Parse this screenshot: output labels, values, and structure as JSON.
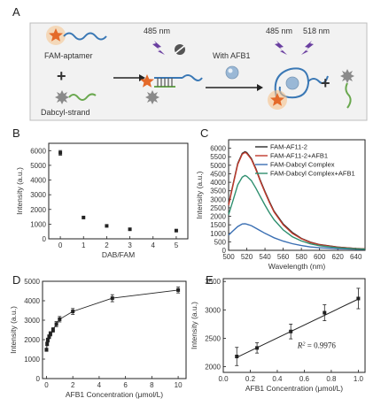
{
  "panel_letters": {
    "a": "A",
    "b": "B",
    "c": "C",
    "d": "D",
    "e": "E"
  },
  "scheme": {
    "fam_aptamer": "FAM-aptamer",
    "dabcyl_strand": "Dabcyl-strand",
    "excitation_1": "485 nm",
    "with_afb1": "With AFB1",
    "excitation_2": "485 nm",
    "emission": "518 nm",
    "colors": {
      "aptamer": "#3a78b5",
      "fam": "#e46a2a",
      "dabcyl": "#6aa84f",
      "quencher": "#8a8a8a",
      "light": "#6a3fa0",
      "afb1": "#9ab8d6",
      "glow": "#f6c28a"
    }
  },
  "chart_data": [
    {
      "id": "B",
      "type": "scatter",
      "xlabel": "DAB/FAM",
      "ylabel": "Intensity (a.u.)",
      "xlim": [
        -0.5,
        5.5
      ],
      "ylim": [
        0,
        6500
      ],
      "xticks": [
        0,
        1,
        2,
        3,
        4,
        5
      ],
      "yticks": [
        0,
        1000,
        2000,
        3000,
        4000,
        5000,
        6000
      ],
      "x": [
        0,
        1,
        2,
        3,
        5
      ],
      "y": [
        5850,
        1450,
        880,
        650,
        560
      ],
      "err": [
        160,
        0,
        0,
        0,
        0
      ],
      "grid": false
    },
    {
      "id": "C",
      "type": "line",
      "xlabel": "Wavelength (nm)",
      "ylabel": "Intensity (a.u.)",
      "xlim": [
        500,
        650
      ],
      "ylim": [
        0,
        6500
      ],
      "xticks": [
        500,
        520,
        540,
        560,
        580,
        600,
        620,
        640
      ],
      "yticks": [
        0,
        500,
        1000,
        1500,
        2000,
        2500,
        3000,
        3500,
        4000,
        4500,
        5000,
        5500,
        6000
      ],
      "legend_position": "top-right",
      "x": [
        500,
        505,
        510,
        515,
        518,
        520,
        525,
        530,
        535,
        540,
        545,
        550,
        560,
        570,
        580,
        590,
        600,
        620,
        640,
        650
      ],
      "series": [
        {
          "name": "FAM-AF11-2",
          "color": "#2b2b2b",
          "values": [
            2700,
            3900,
            5100,
            5700,
            5800,
            5750,
            5400,
            4800,
            4100,
            3450,
            2850,
            2300,
            1550,
            1050,
            700,
            480,
            340,
            190,
            110,
            90
          ]
        },
        {
          "name": "FAM-AF11-2+AFB1",
          "color": "#c0392b",
          "values": [
            2650,
            3850,
            5050,
            5650,
            5750,
            5700,
            5350,
            4750,
            4050,
            3400,
            2800,
            2250,
            1500,
            1000,
            680,
            460,
            330,
            180,
            105,
            85
          ]
        },
        {
          "name": "FAM-Dabcyl Complex",
          "color": "#3a6fb3",
          "values": [
            900,
            1150,
            1400,
            1550,
            1560,
            1540,
            1450,
            1300,
            1150,
            1000,
            870,
            740,
            540,
            390,
            280,
            200,
            150,
            100,
            70,
            60
          ]
        },
        {
          "name": "FAM-Dabcyl Complex+AFB1",
          "color": "#2f8f6f",
          "values": [
            2100,
            2950,
            3850,
            4300,
            4400,
            4350,
            4100,
            3650,
            3150,
            2650,
            2200,
            1800,
            1200,
            800,
            550,
            380,
            270,
            150,
            90,
            70
          ]
        }
      ],
      "grid": false
    },
    {
      "id": "D",
      "type": "scatter",
      "xlabel": "AFB1 Concentration (μmol/L)",
      "ylabel": "Intensity (a.u.)",
      "xlim": [
        -0.3,
        10.6
      ],
      "ylim": [
        0,
        5000
      ],
      "xticks": [
        0,
        2,
        4,
        6,
        8,
        10
      ],
      "yticks": [
        0,
        1000,
        2000,
        3000,
        4000,
        5000
      ],
      "x": [
        0,
        0.05,
        0.1,
        0.2,
        0.3,
        0.5,
        0.75,
        1.0,
        2.0,
        5.0,
        10.0
      ],
      "y": [
        1480,
        1780,
        1980,
        2150,
        2300,
        2500,
        2800,
        3050,
        3450,
        4130,
        4550
      ],
      "err": [
        80,
        90,
        100,
        100,
        110,
        120,
        130,
        140,
        150,
        180,
        150
      ],
      "fit": true,
      "grid": false
    },
    {
      "id": "E",
      "type": "scatter",
      "xlabel": "AFB1 Concentration (μmol/L)",
      "ylabel": "Intensity (a.u.)",
      "xlim": [
        0.0,
        1.05
      ],
      "ylim": [
        1900,
        3550
      ],
      "xticks": [
        0.0,
        0.2,
        0.4,
        0.6,
        0.8,
        1.0
      ],
      "xtick_labels": [
        "0.0",
        "0.2",
        "0.4",
        "0.6",
        "0.8",
        "1.0"
      ],
      "yticks": [
        2000,
        2500,
        3000,
        3500
      ],
      "x": [
        0.1,
        0.25,
        0.5,
        0.75,
        1.0
      ],
      "y": [
        2180,
        2330,
        2620,
        2950,
        3200
      ],
      "err": [
        160,
        90,
        130,
        140,
        180
      ],
      "fit_line": {
        "slope": 1140,
        "intercept": 2050
      },
      "annotation_prefix": "R",
      "annotation_sup": "2",
      "annotation_value": " = 0.9976",
      "grid": false
    }
  ]
}
